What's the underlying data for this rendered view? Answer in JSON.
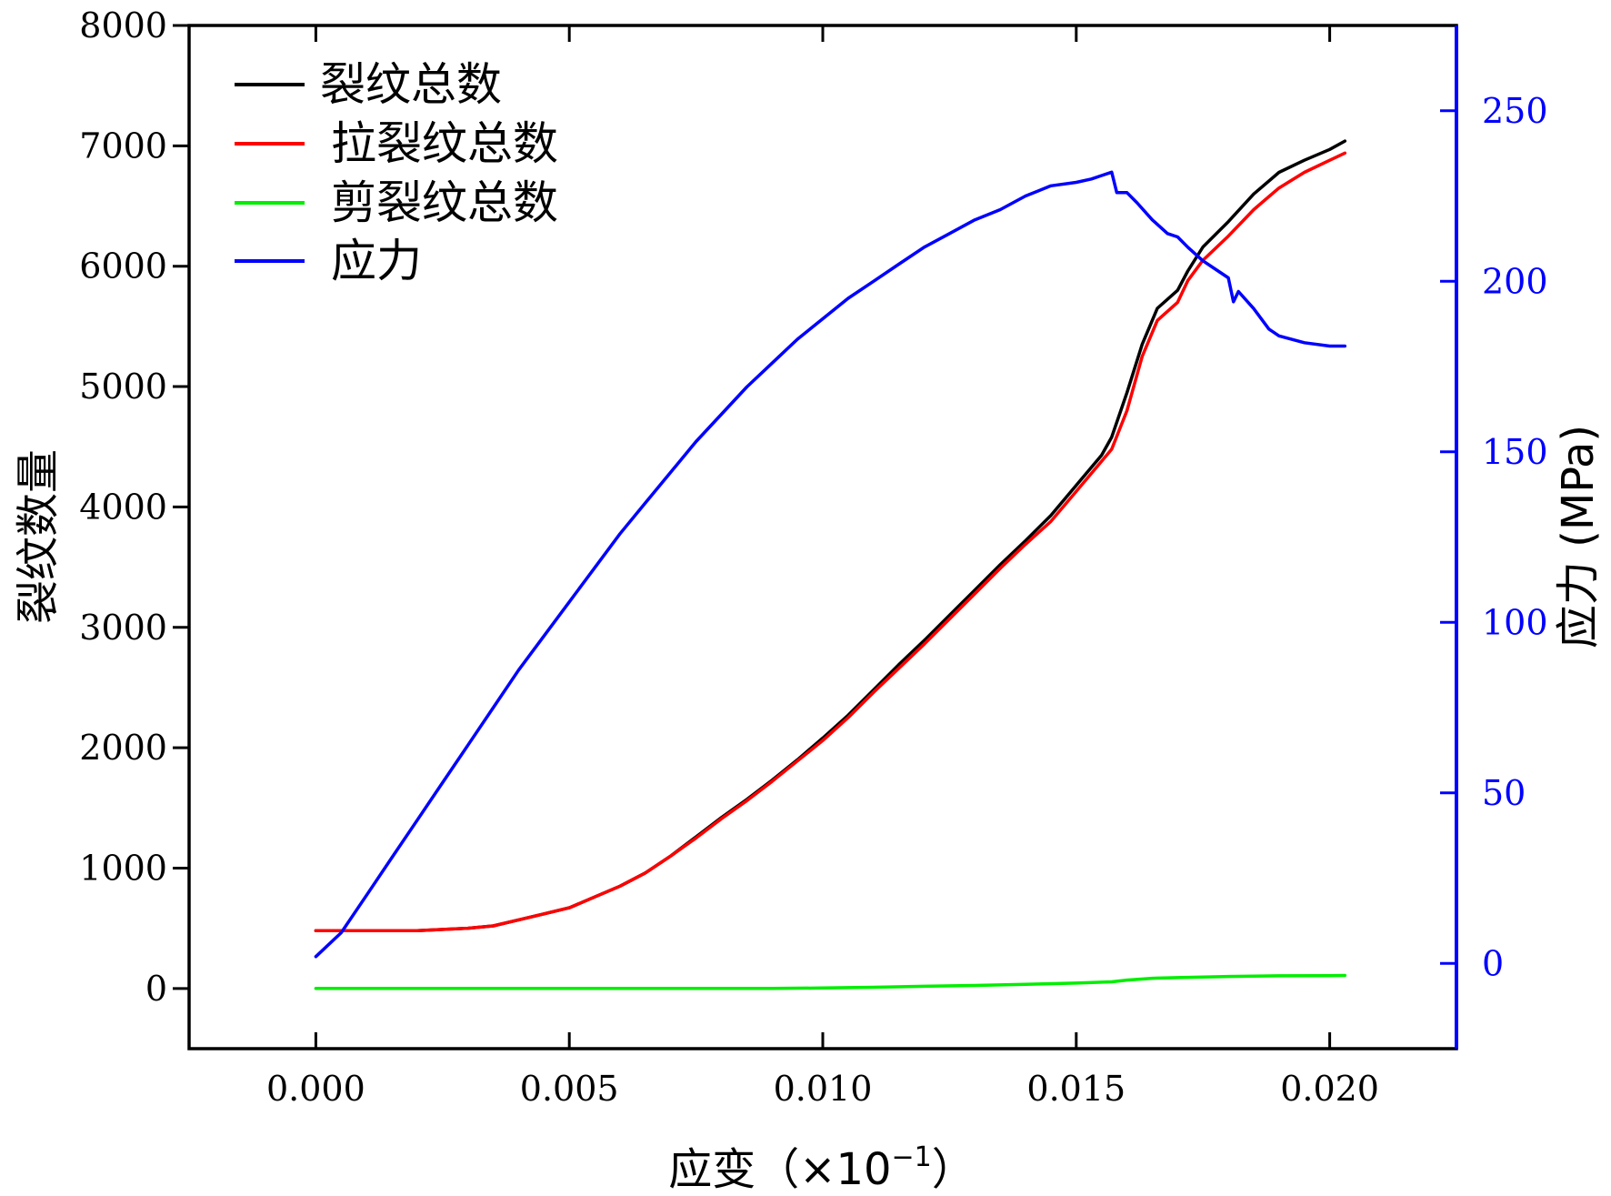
{
  "chart_data": {
    "type": "line",
    "xlabel": "应变（×10",
    "xlabel_exponent": "−1",
    "xlabel_close": "）",
    "ylabel_left": "裂纹数量",
    "ylabel_right": "应力 (MPa)",
    "xlim": [
      -0.0025,
      0.0225
    ],
    "ylim_left": [
      -500,
      8000
    ],
    "ylim_right": [
      -25,
      275
    ],
    "xticks": [
      "0.000",
      "0.005",
      "0.010",
      "0.015",
      "0.020"
    ],
    "xtick_values": [
      0,
      0.005,
      0.01,
      0.015,
      0.02
    ],
    "yticks_left": [
      "0",
      "1000",
      "2000",
      "3000",
      "4000",
      "5000",
      "6000",
      "7000",
      "8000"
    ],
    "ytick_values_left": [
      0,
      1000,
      2000,
      3000,
      4000,
      5000,
      6000,
      7000,
      8000
    ],
    "yticks_right": [
      "0",
      "50",
      "100",
      "150",
      "200",
      "250"
    ],
    "ytick_values_right": [
      0,
      50,
      100,
      150,
      200,
      250
    ],
    "right_axis_color": "#0000ff",
    "legend_position": "top-left",
    "grid": false,
    "series": [
      {
        "name": "裂纹总数",
        "color": "#000000",
        "axis": "left",
        "x": [
          0,
          0.001,
          0.002,
          0.003,
          0.0035,
          0.004,
          0.0045,
          0.005,
          0.0055,
          0.006,
          0.0065,
          0.007,
          0.0075,
          0.008,
          0.0085,
          0.009,
          0.0095,
          0.01,
          0.0105,
          0.011,
          0.0115,
          0.012,
          0.0125,
          0.013,
          0.0135,
          0.014,
          0.0145,
          0.015,
          0.0155,
          0.0157,
          0.016,
          0.0163,
          0.0166,
          0.017,
          0.0172,
          0.0175,
          0.018,
          0.0185,
          0.019,
          0.0195,
          0.02,
          0.0203
        ],
        "y": [
          480,
          480,
          480,
          500,
          520,
          570,
          620,
          670,
          760,
          850,
          960,
          1100,
          1260,
          1420,
          1570,
          1730,
          1900,
          2080,
          2270,
          2480,
          2690,
          2890,
          3100,
          3310,
          3520,
          3720,
          3930,
          4180,
          4430,
          4580,
          4950,
          5350,
          5650,
          5800,
          5960,
          6160,
          6370,
          6600,
          6780,
          6880,
          6970,
          7040
        ]
      },
      {
        "name": "拉裂纹总数",
        "color": "#ff0000",
        "axis": "left",
        "x": [
          0,
          0.001,
          0.002,
          0.003,
          0.0035,
          0.004,
          0.0045,
          0.005,
          0.0055,
          0.006,
          0.0065,
          0.007,
          0.0075,
          0.008,
          0.0085,
          0.009,
          0.0095,
          0.01,
          0.0105,
          0.011,
          0.0115,
          0.012,
          0.0125,
          0.013,
          0.0135,
          0.014,
          0.0145,
          0.015,
          0.0155,
          0.0157,
          0.016,
          0.0163,
          0.0166,
          0.017,
          0.0172,
          0.0175,
          0.018,
          0.0185,
          0.019,
          0.0195,
          0.02,
          0.0203
        ],
        "y": [
          480,
          480,
          480,
          500,
          520,
          570,
          620,
          670,
          760,
          850,
          960,
          1100,
          1250,
          1410,
          1560,
          1720,
          1890,
          2060,
          2250,
          2460,
          2660,
          2860,
          3070,
          3280,
          3490,
          3690,
          3880,
          4130,
          4380,
          4480,
          4800,
          5250,
          5550,
          5700,
          5880,
          6050,
          6250,
          6470,
          6650,
          6780,
          6880,
          6940
        ]
      },
      {
        "name": "剪裂纹总数",
        "color": "#00ee00",
        "axis": "left",
        "x": [
          0,
          0.005,
          0.009,
          0.01,
          0.011,
          0.012,
          0.013,
          0.014,
          0.015,
          0.0157,
          0.016,
          0.0165,
          0.017,
          0.018,
          0.019,
          0.02,
          0.0203
        ],
        "y": [
          0,
          0,
          0,
          4,
          10,
          18,
          25,
          35,
          45,
          55,
          70,
          85,
          90,
          100,
          105,
          107,
          108
        ]
      },
      {
        "name": "应力",
        "color": "#0000ff",
        "axis": "right",
        "x": [
          0,
          0.0005,
          0.001,
          0.0015,
          0.002,
          0.0025,
          0.003,
          0.0035,
          0.004,
          0.0045,
          0.005,
          0.0055,
          0.006,
          0.0065,
          0.007,
          0.0075,
          0.008,
          0.0085,
          0.009,
          0.0095,
          0.01,
          0.0105,
          0.011,
          0.0115,
          0.012,
          0.0125,
          0.013,
          0.0135,
          0.014,
          0.0145,
          0.015,
          0.0153,
          0.0155,
          0.0157,
          0.0158,
          0.016,
          0.0162,
          0.0165,
          0.0168,
          0.017,
          0.0172,
          0.0175,
          0.0178,
          0.018,
          0.0181,
          0.0182,
          0.0185,
          0.0188,
          0.019,
          0.0195,
          0.02,
          0.0203
        ],
        "y": [
          2,
          9,
          20,
          31,
          42,
          53,
          64,
          75,
          86,
          96,
          106,
          116,
          126,
          135,
          144,
          153,
          161,
          169,
          176,
          183,
          189,
          195,
          200,
          205,
          210,
          214,
          218,
          221,
          225,
          228,
          229,
          230,
          231,
          232,
          226,
          226,
          223,
          218,
          214,
          213,
          210,
          206,
          203,
          201,
          194,
          197,
          192,
          186,
          184,
          182,
          181,
          181
        ]
      }
    ]
  }
}
